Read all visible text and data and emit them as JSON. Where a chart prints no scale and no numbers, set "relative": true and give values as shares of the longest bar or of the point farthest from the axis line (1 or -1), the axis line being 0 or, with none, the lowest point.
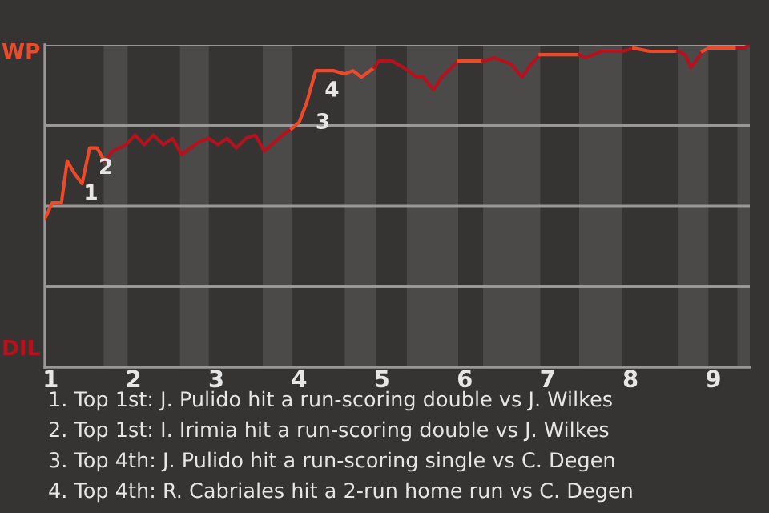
{
  "chart_data": {
    "type": "line",
    "relative": true,
    "grid": "y",
    "xlim": [
      0.93,
      9.44
    ],
    "xticks": [
      1,
      2,
      3,
      4,
      5,
      6,
      7,
      8,
      9
    ],
    "bands": [
      {
        "axis": "x",
        "from": 1.64,
        "to": 1.93,
        "color": "#4b4a49"
      },
      {
        "axis": "x",
        "from": 2.56,
        "to": 2.91,
        "color": "#4b4a49"
      },
      {
        "axis": "x",
        "from": 3.56,
        "to": 3.91,
        "color": "#4b4a49"
      },
      {
        "axis": "x",
        "from": 4.55,
        "to": 4.93,
        "color": "#4b4a49"
      },
      {
        "axis": "x",
        "from": 5.3,
        "to": 5.92,
        "color": "#4b4a49"
      },
      {
        "axis": "x",
        "from": 6.22,
        "to": 6.91,
        "color": "#4b4a49"
      },
      {
        "axis": "x",
        "from": 7.38,
        "to": 7.9,
        "color": "#4b4a49"
      },
      {
        "axis": "x",
        "from": 8.57,
        "to": 8.94,
        "color": "#4b4a49"
      },
      {
        "axis": "x",
        "from": 9.29,
        "to": 9.44,
        "color": "#4b4a49"
      }
    ],
    "series": [
      {
        "color": "#ec4a2a",
        "x": [
          0.93,
          1.02,
          1.13,
          1.2,
          1.29,
          1.38,
          1.47,
          1.56,
          1.65
        ],
        "values": [
          0.46,
          0.51,
          0.51,
          0.64,
          0.6,
          0.57,
          0.68,
          0.68,
          0.64
        ]
      },
      {
        "color": "#b5121e",
        "x": [
          1.65,
          1.75,
          1.91,
          2.02,
          2.13,
          2.24,
          2.36,
          2.47,
          2.58,
          2.8,
          2.91,
          3.02,
          3.13,
          3.24,
          3.36,
          3.47,
          3.58,
          3.8,
          3.91
        ],
        "values": [
          0.64,
          0.67,
          0.69,
          0.72,
          0.69,
          0.72,
          0.69,
          0.71,
          0.66,
          0.7,
          0.71,
          0.69,
          0.71,
          0.68,
          0.71,
          0.72,
          0.67,
          0.72,
          0.74
        ]
      },
      {
        "color": "#ec4a2a",
        "x": [
          3.91,
          4.0,
          4.09,
          4.2,
          4.29,
          4.42,
          4.55,
          4.65,
          4.75,
          4.91
        ],
        "values": [
          0.74,
          0.76,
          0.82,
          0.92,
          0.92,
          0.92,
          0.91,
          0.92,
          0.9,
          0.93
        ]
      },
      {
        "color": "#b5121e",
        "x": [
          4.91,
          4.96,
          5.04,
          5.12,
          5.26,
          5.42,
          5.5,
          5.62,
          5.72,
          5.92
        ],
        "values": [
          0.93,
          0.95,
          0.95,
          0.95,
          0.93,
          0.9,
          0.9,
          0.86,
          0.9,
          0.95
        ]
      },
      {
        "color": "#ec4a2a",
        "x": [
          5.92,
          6.11,
          6.22
        ],
        "values": [
          0.95,
          0.95,
          0.95
        ]
      },
      {
        "color": "#b5121e",
        "x": [
          6.22,
          6.36,
          6.56,
          6.69,
          6.8,
          6.91
        ],
        "values": [
          0.95,
          0.96,
          0.94,
          0.9,
          0.94,
          0.97
        ]
      },
      {
        "color": "#ec4a2a",
        "x": [
          6.91,
          7.38
        ],
        "values": [
          0.97,
          0.97
        ]
      },
      {
        "color": "#b5121e",
        "x": [
          7.38,
          7.45,
          7.65,
          7.9,
          8.04
        ],
        "values": [
          0.97,
          0.96,
          0.98,
          0.98,
          0.99
        ]
      },
      {
        "color": "#ec4a2a",
        "x": [
          8.04,
          8.23,
          8.57
        ],
        "values": [
          0.99,
          0.98,
          0.98
        ]
      },
      {
        "color": "#b5121e",
        "x": [
          8.57,
          8.66,
          8.73,
          8.87
        ],
        "values": [
          0.98,
          0.97,
          0.93,
          0.98
        ]
      },
      {
        "color": "#ec4a2a",
        "x": [
          8.87,
          8.94,
          9.29
        ],
        "values": [
          0.98,
          0.99,
          0.99
        ]
      },
      {
        "color": "#b5121e",
        "x": [
          9.29,
          9.37,
          9.43
        ],
        "values": [
          0.99,
          0.99,
          1.0
        ]
      }
    ],
    "annotations": [
      "WP",
      "DIL",
      {
        "text": "1",
        "x": 1.29,
        "y": 0.6
      },
      {
        "text": "2",
        "x": 1.47,
        "y": 0.68
      },
      {
        "text": "3",
        "x": 4.09,
        "y": 0.82
      },
      {
        "text": "4",
        "x": 4.2,
        "y": 0.92
      },
      "1. Top 1st: J. Pulido hit a run-scoring double vs J. Wilkes",
      "2. Top 1st: I. Irimia hit a run-scoring double vs J. Wilkes",
      "3. Top 4th: J. Pulido hit a run-scoring single vs C. Degen",
      "4. Top 4th: R. Cabriales hit a 2-run home run vs C. Degen"
    ]
  }
}
